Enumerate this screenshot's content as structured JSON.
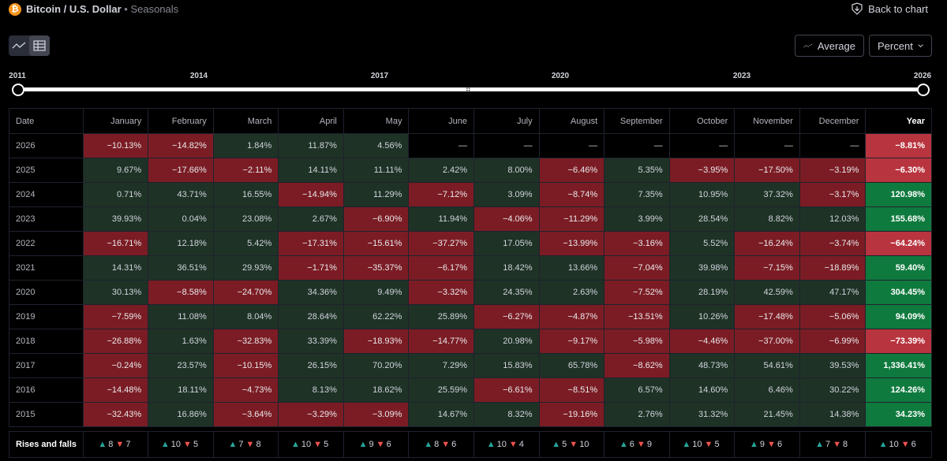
{
  "header": {
    "coin_symbol": "₿",
    "title": "Bitcoin / U.S. Dollar",
    "separator": "•",
    "subtitle": "Seasonals",
    "back_label": "Back to chart"
  },
  "toolbar": {
    "average_label": "Average",
    "percent_label": "Percent"
  },
  "range": {
    "labels": [
      "2011",
      "2014",
      "2017",
      "2020",
      "2023",
      "2026"
    ],
    "grip": "⠿"
  },
  "table": {
    "date_header": "Date",
    "months": [
      "January",
      "February",
      "March",
      "April",
      "May",
      "June",
      "July",
      "August",
      "September",
      "October",
      "November",
      "December"
    ],
    "year_header": "Year",
    "rows": [
      {
        "date": "2026",
        "values": [
          "−10.13%",
          "−14.82%",
          "1.84%",
          "11.87%",
          "4.56%",
          "—",
          "—",
          "—",
          "—",
          "—",
          "—",
          "—"
        ],
        "year": "−8.81%"
      },
      {
        "date": "2025",
        "values": [
          "9.67%",
          "−17.66%",
          "−2.11%",
          "14.11%",
          "11.11%",
          "2.42%",
          "8.00%",
          "−6.46%",
          "5.35%",
          "−3.95%",
          "−17.50%",
          "−3.19%"
        ],
        "year": "−6.30%"
      },
      {
        "date": "2024",
        "values": [
          "0.71%",
          "43.71%",
          "16.55%",
          "−14.94%",
          "11.29%",
          "−7.12%",
          "3.09%",
          "−8.74%",
          "7.35%",
          "10.95%",
          "37.32%",
          "−3.17%"
        ],
        "year": "120.98%"
      },
      {
        "date": "2023",
        "values": [
          "39.93%",
          "0.04%",
          "23.08%",
          "2.67%",
          "−6.90%",
          "11.94%",
          "−4.06%",
          "−11.29%",
          "3.99%",
          "28.54%",
          "8.82%",
          "12.03%"
        ],
        "year": "155.68%"
      },
      {
        "date": "2022",
        "values": [
          "−16.71%",
          "12.18%",
          "5.42%",
          "−17.31%",
          "−15.61%",
          "−37.27%",
          "17.05%",
          "−13.99%",
          "−3.16%",
          "5.52%",
          "−16.24%",
          "−3.74%"
        ],
        "year": "−64.24%"
      },
      {
        "date": "2021",
        "values": [
          "14.31%",
          "36.51%",
          "29.93%",
          "−1.71%",
          "−35.37%",
          "−6.17%",
          "18.42%",
          "13.66%",
          "−7.04%",
          "39.98%",
          "−7.15%",
          "−18.89%"
        ],
        "year": "59.40%"
      },
      {
        "date": "2020",
        "values": [
          "30.13%",
          "−8.58%",
          "−24.70%",
          "34.36%",
          "9.49%",
          "−3.32%",
          "24.35%",
          "2.63%",
          "−7.52%",
          "28.19%",
          "42.59%",
          "47.17%"
        ],
        "year": "304.45%"
      },
      {
        "date": "2019",
        "values": [
          "−7.59%",
          "11.08%",
          "8.04%",
          "28.64%",
          "62.22%",
          "25.89%",
          "−6.27%",
          "−4.87%",
          "−13.51%",
          "10.26%",
          "−17.48%",
          "−5.06%"
        ],
        "year": "94.09%"
      },
      {
        "date": "2018",
        "values": [
          "−26.88%",
          "1.63%",
          "−32.83%",
          "33.39%",
          "−18.93%",
          "−14.77%",
          "20.98%",
          "−9.17%",
          "−5.98%",
          "−4.46%",
          "−37.00%",
          "−6.99%"
        ],
        "year": "−73.39%"
      },
      {
        "date": "2017",
        "values": [
          "−0.24%",
          "23.57%",
          "−10.15%",
          "26.15%",
          "70.20%",
          "7.29%",
          "15.83%",
          "65.78%",
          "−8.62%",
          "48.73%",
          "54.61%",
          "39.53%"
        ],
        "year": "1,336.41%"
      },
      {
        "date": "2016",
        "values": [
          "−14.48%",
          "18.11%",
          "−4.73%",
          "8.13%",
          "18.62%",
          "25.59%",
          "−6.61%",
          "−8.51%",
          "6.57%",
          "14.60%",
          "6.46%",
          "30.22%"
        ],
        "year": "124.26%"
      },
      {
        "date": "2015",
        "values": [
          "−32.43%",
          "16.86%",
          "−3.64%",
          "−3.29%",
          "−3.09%",
          "14.67%",
          "8.32%",
          "−19.16%",
          "2.76%",
          "31.32%",
          "21.45%",
          "14.38%"
        ],
        "year": "34.23%"
      }
    ]
  },
  "footer": {
    "label": "Rises and falls",
    "up_glyph": "▲",
    "down_glyph": "▼",
    "counts": [
      {
        "up": "8",
        "down": "7"
      },
      {
        "up": "10",
        "down": "5"
      },
      {
        "up": "7",
        "down": "8"
      },
      {
        "up": "10",
        "down": "5"
      },
      {
        "up": "9",
        "down": "6"
      },
      {
        "up": "8",
        "down": "6"
      },
      {
        "up": "10",
        "down": "4"
      },
      {
        "up": "5",
        "down": "10"
      },
      {
        "up": "6",
        "down": "9"
      },
      {
        "up": "10",
        "down": "5"
      },
      {
        "up": "9",
        "down": "6"
      },
      {
        "up": "7",
        "down": "8"
      },
      {
        "up": "10",
        "down": "6"
      }
    ]
  },
  "colors": {
    "positive_cell": "#1e3226",
    "negative_cell": "#7b1c24",
    "positive_year": "#0f7a3e",
    "negative_year": "#b8343e",
    "rise": "#26a69a",
    "fall": "#ef5350"
  }
}
